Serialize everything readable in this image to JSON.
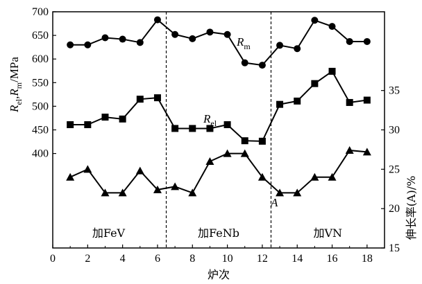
{
  "chart_data": {
    "type": "line",
    "x": [
      1,
      2,
      3,
      4,
      5,
      6,
      7,
      8,
      9,
      10,
      11,
      12,
      13,
      14,
      15,
      16,
      17,
      18
    ],
    "series": [
      {
        "name": "Rm",
        "name_main": "R",
        "name_sub": "m",
        "axis": "left",
        "marker": "circle",
        "values": [
          630,
          630,
          645,
          642,
          635,
          683,
          652,
          643,
          657,
          652,
          592,
          587,
          629,
          622,
          682,
          669,
          637,
          637
        ]
      },
      {
        "name": "Rel",
        "name_main": "R",
        "name_sub": "el",
        "axis": "left",
        "marker": "square",
        "values": [
          461,
          461,
          477,
          473,
          515,
          518,
          453,
          453,
          453,
          461,
          427,
          426,
          504,
          511,
          548,
          574,
          508,
          513
        ]
      },
      {
        "name": "A",
        "name_main": "A",
        "name_sub": "",
        "axis": "right",
        "marker": "triangle",
        "values": [
          24.0,
          25.0,
          22.0,
          22.0,
          24.8,
          22.4,
          22.8,
          22.0,
          26.0,
          27.0,
          27.0,
          24.0,
          22.0,
          22.0,
          24.0,
          24.0,
          27.4,
          27.2
        ]
      }
    ],
    "xlabel": "炉次",
    "ylabel_left_parts": [
      "R",
      "el",
      ",",
      "R",
      "m",
      "/MPa"
    ],
    "ylabel_right": "伸长率(A)/%",
    "xlim": [
      0,
      19
    ],
    "xticks": [
      0,
      2,
      4,
      6,
      8,
      10,
      12,
      14,
      16,
      18
    ],
    "ylim_left": [
      200,
      700
    ],
    "yticks_left": [
      400,
      450,
      500,
      550,
      600,
      650,
      700
    ],
    "ylim_right": [
      15,
      45
    ],
    "yticks_right": [
      15,
      20,
      25,
      30,
      35
    ],
    "dividers": [
      6.5,
      12.5
    ],
    "region_labels": [
      "加FeV",
      "加FeNb",
      "加VN"
    ],
    "grid": false
  }
}
